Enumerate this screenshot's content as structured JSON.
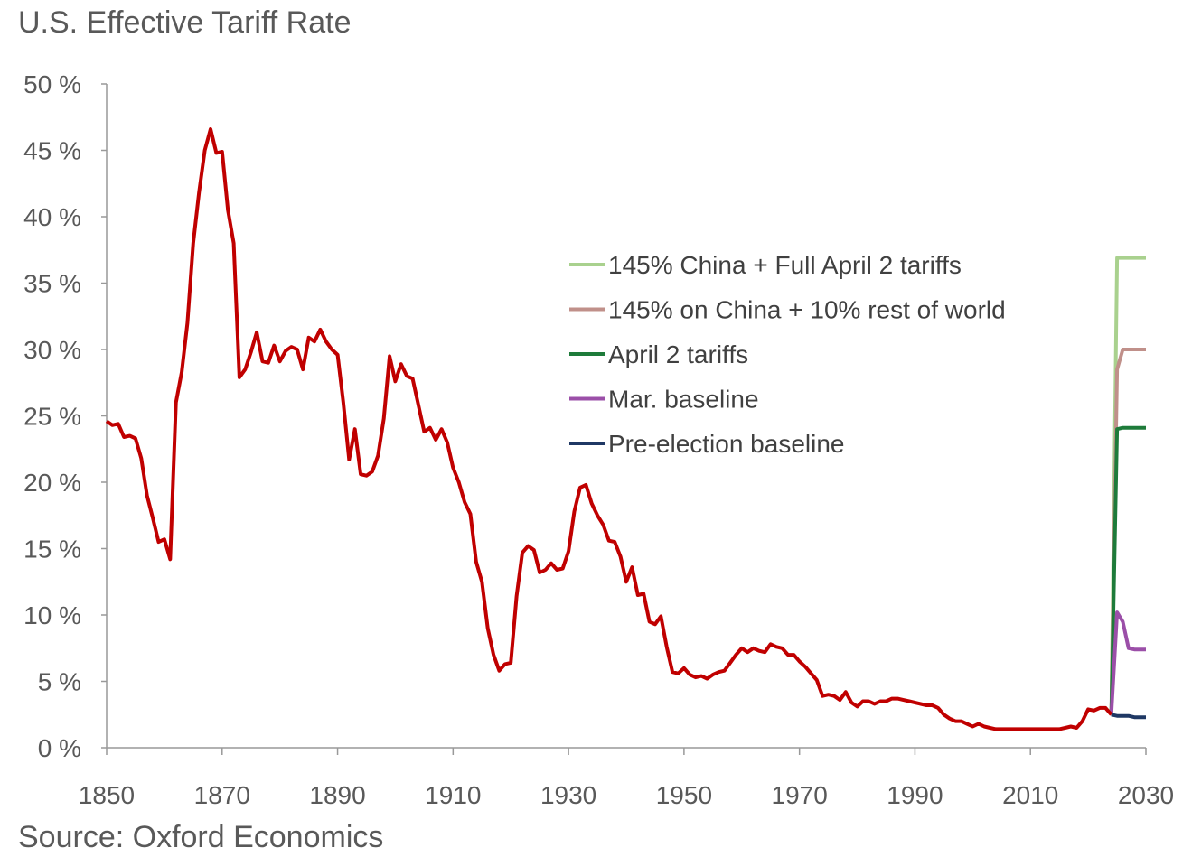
{
  "chart_data": {
    "type": "line",
    "title": "U.S. Effective Tariff Rate",
    "source": "Source: Oxford Economics",
    "xlim": [
      1850,
      2030
    ],
    "xticks": [
      1850,
      1870,
      1890,
      1910,
      1930,
      1950,
      1970,
      1990,
      2010,
      2030
    ],
    "ylim": [
      0,
      50
    ],
    "yticks": [
      {
        "value": 0,
        "label": "0 %"
      },
      {
        "value": 5,
        "label": "5 %"
      },
      {
        "value": 10,
        "label": "10 %"
      },
      {
        "value": 15,
        "label": "15 %"
      },
      {
        "value": 20,
        "label": "20 %"
      },
      {
        "value": 25,
        "label": "25 %"
      },
      {
        "value": 30,
        "label": "30 %"
      },
      {
        "value": 35,
        "label": "35 %"
      },
      {
        "value": 40,
        "label": "40 %"
      },
      {
        "value": 45,
        "label": "45 %"
      },
      {
        "value": 50,
        "label": "50 %"
      }
    ],
    "grid": false,
    "series": [
      {
        "name": "145% China + Full April 2 tariffs",
        "color": "#a9d18e",
        "x": [
          2024,
          2025,
          2026,
          2027,
          2028,
          2029,
          2030
        ],
        "values": [
          2.5,
          36.9,
          36.9,
          36.9,
          36.9,
          36.9,
          36.9
        ]
      },
      {
        "name": "145% on China + 10% rest of world",
        "color": "#c0908a",
        "x": [
          2024,
          2025,
          2026,
          2027,
          2028,
          2029,
          2030
        ],
        "values": [
          2.5,
          28.5,
          30.0,
          30.0,
          30.0,
          30.0,
          30.0
        ]
      },
      {
        "name": "April 2 tariffs",
        "color": "#1e7b3a",
        "x": [
          2024,
          2025,
          2026,
          2027,
          2028,
          2029,
          2030
        ],
        "values": [
          2.5,
          24.0,
          24.1,
          24.1,
          24.1,
          24.1,
          24.1
        ]
      },
      {
        "name": "Mar. baseline",
        "color": "#9b4fa8",
        "x": [
          2024,
          2025,
          2026,
          2027,
          2028,
          2029,
          2030
        ],
        "values": [
          2.5,
          10.2,
          9.5,
          7.5,
          7.4,
          7.4,
          7.4
        ]
      },
      {
        "name": "Pre-election baseline",
        "color": "#1f3864",
        "x": [
          2024,
          2025,
          2026,
          2027,
          2028,
          2029,
          2030
        ],
        "values": [
          2.5,
          2.4,
          2.4,
          2.4,
          2.3,
          2.3,
          2.3
        ]
      },
      {
        "color": "#c00000",
        "x": [
          1850,
          1851,
          1852,
          1853,
          1854,
          1855,
          1856,
          1857,
          1858,
          1859,
          1860,
          1861,
          1862,
          1863,
          1864,
          1865,
          1866,
          1867,
          1868,
          1869,
          1870,
          1871,
          1872,
          1873,
          1874,
          1875,
          1876,
          1877,
          1878,
          1879,
          1880,
          1881,
          1882,
          1883,
          1884,
          1885,
          1886,
          1887,
          1888,
          1889,
          1890,
          1891,
          1892,
          1893,
          1894,
          1895,
          1896,
          1897,
          1898,
          1899,
          1900,
          1901,
          1902,
          1903,
          1904,
          1905,
          1906,
          1907,
          1908,
          1909,
          1910,
          1911,
          1912,
          1913,
          1914,
          1915,
          1916,
          1917,
          1918,
          1919,
          1920,
          1921,
          1922,
          1923,
          1924,
          1925,
          1926,
          1927,
          1928,
          1929,
          1930,
          1931,
          1932,
          1933,
          1934,
          1935,
          1936,
          1937,
          1938,
          1939,
          1940,
          1941,
          1942,
          1943,
          1944,
          1945,
          1946,
          1947,
          1948,
          1949,
          1950,
          1951,
          1952,
          1953,
          1954,
          1955,
          1956,
          1957,
          1958,
          1959,
          1960,
          1961,
          1962,
          1963,
          1964,
          1965,
          1966,
          1967,
          1968,
          1969,
          1970,
          1971,
          1972,
          1973,
          1974,
          1975,
          1976,
          1977,
          1978,
          1979,
          1980,
          1981,
          1982,
          1983,
          1984,
          1985,
          1986,
          1987,
          1988,
          1989,
          1990,
          1991,
          1992,
          1993,
          1994,
          1995,
          1996,
          1997,
          1998,
          1999,
          2000,
          2001,
          2002,
          2003,
          2004,
          2005,
          2006,
          2007,
          2008,
          2009,
          2010,
          2011,
          2012,
          2013,
          2014,
          2015,
          2016,
          2017,
          2018,
          2019,
          2020,
          2021,
          2022,
          2023,
          2024
        ],
        "values": [
          24.6,
          24.3,
          24.4,
          23.4,
          23.5,
          23.3,
          21.8,
          19.0,
          17.3,
          15.5,
          15.7,
          14.2,
          26.0,
          28.3,
          32.0,
          38.0,
          41.8,
          45.0,
          46.6,
          44.8,
          44.9,
          40.5,
          38.0,
          27.9,
          28.5,
          29.8,
          31.3,
          29.1,
          29.0,
          30.3,
          29.1,
          29.9,
          30.2,
          30.0,
          28.5,
          30.9,
          30.6,
          31.5,
          30.6,
          30.0,
          29.6,
          26.0,
          21.7,
          24.0,
          20.6,
          20.5,
          20.8,
          22.0,
          24.8,
          29.5,
          27.6,
          28.9,
          28.0,
          27.8,
          25.8,
          23.8,
          24.1,
          23.2,
          24.0,
          23.0,
          21.1,
          20.0,
          18.5,
          17.6,
          14.0,
          12.5,
          9.0,
          7.0,
          5.8,
          6.3,
          6.4,
          11.4,
          14.7,
          15.2,
          14.9,
          13.2,
          13.4,
          13.9,
          13.4,
          13.5,
          14.8,
          17.8,
          19.6,
          19.8,
          18.4,
          17.5,
          16.8,
          15.6,
          15.5,
          14.4,
          12.5,
          13.6,
          11.5,
          11.6,
          9.5,
          9.3,
          9.9,
          7.6,
          5.7,
          5.6,
          6.0,
          5.5,
          5.3,
          5.4,
          5.2,
          5.5,
          5.7,
          5.8,
          6.4,
          7.0,
          7.5,
          7.2,
          7.5,
          7.3,
          7.2,
          7.8,
          7.6,
          7.5,
          7.0,
          7.0,
          6.5,
          6.1,
          5.6,
          5.1,
          3.9,
          4.0,
          3.9,
          3.6,
          4.2,
          3.4,
          3.1,
          3.5,
          3.5,
          3.3,
          3.5,
          3.5,
          3.7,
          3.7,
          3.6,
          3.5,
          3.4,
          3.3,
          3.2,
          3.2,
          3.0,
          2.5,
          2.2,
          2.0,
          2.0,
          1.8,
          1.6,
          1.8,
          1.6,
          1.5,
          1.4,
          1.4,
          1.4,
          1.4,
          1.4,
          1.4,
          1.4,
          1.4,
          1.4,
          1.4,
          1.4,
          1.4,
          1.5,
          1.6,
          1.5,
          2.0,
          2.9,
          2.8,
          3.0,
          3.0,
          2.5
        ]
      }
    ]
  }
}
